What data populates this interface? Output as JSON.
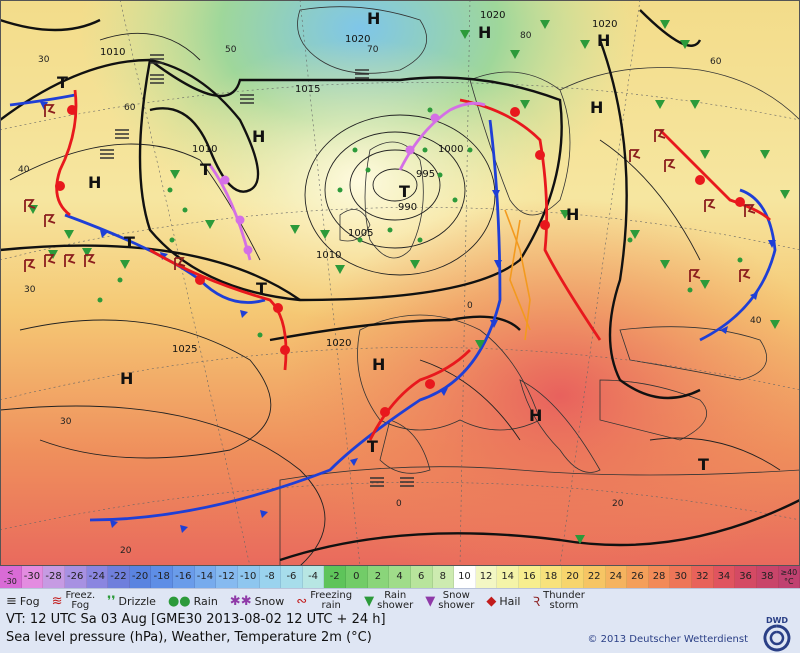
{
  "map": {
    "pressure_labels": [
      "1010",
      "1015",
      "1010",
      "1020",
      "1020",
      "1020",
      "1000",
      "995",
      "990",
      "1005",
      "1010",
      "1020",
      "1025"
    ],
    "center_labels": [
      "H",
      "H",
      "H",
      "H",
      "H",
      "H",
      "H",
      "H",
      "H",
      "H",
      "T",
      "T",
      "T",
      "T",
      "T",
      "T",
      "T"
    ],
    "temperature_isotherm_labels": [
      "30",
      "50",
      "60",
      "40",
      "30",
      "30",
      "20",
      "20",
      "0",
      "0",
      "40",
      "60",
      "70",
      "80"
    ]
  },
  "scale": {
    "first_label": "<\n-30",
    "values": [
      "-30",
      "-28",
      "-26",
      "-24",
      "-22",
      "-20",
      "-18",
      "-16",
      "-14",
      "-12",
      "-10",
      "-8",
      "-6",
      "-4",
      "-2",
      "0",
      "2",
      "4",
      "6",
      "8",
      "10",
      "12",
      "14",
      "16",
      "18",
      "20",
      "22",
      "24",
      "26",
      "28",
      "30",
      "32",
      "34",
      "36",
      "38"
    ],
    "last_label": "≥40\n°C",
    "colors": [
      "#d96bd6",
      "#e38ce0",
      "#c69be3",
      "#a791e2",
      "#8a86e0",
      "#6f7fdc",
      "#5a84e0",
      "#5e8ee6",
      "#6a9cea",
      "#77abed",
      "#86baf0",
      "#8ec6ef",
      "#9ad3ee",
      "#a7ddeb",
      "#b7e6e3",
      "#5ec45a",
      "#72cc68",
      "#8ad57a",
      "#a0dc8a",
      "#b8e49c",
      "#cdebb0",
      "#ffffff",
      "#f3f7c4",
      "#f4f4a8",
      "#f7ee8e",
      "#f8e27c",
      "#f7d56d",
      "#f6c564",
      "#f5b35f",
      "#f49f5a",
      "#f28a58",
      "#ee7558",
      "#e8625a",
      "#e0545f",
      "#d44a64",
      "#c9456a",
      "#c04170"
    ]
  },
  "legend": {
    "fog": "Fog",
    "freezing_fog": "Freez.\nFog",
    "drizzle": "Drizzle",
    "rain": "Rain",
    "snow": "Snow",
    "freezing_rain": "Freezing\nrain",
    "rain_shower": "Rain\nshower",
    "snow_shower": "Snow\nshower",
    "hail": "Hail",
    "thunderstorm": "Thunder\nstorm"
  },
  "info": {
    "valid_time": "VT: 12 UTC Sa  03 Aug [GME30 2013-08-02  12 UTC + 24 h]",
    "description": "Sea level pressure (hPa), Weather, Temperature 2m (°C)",
    "copyright": "© 2013 Deutscher Wetterdienst",
    "logo_text": "DWD"
  }
}
